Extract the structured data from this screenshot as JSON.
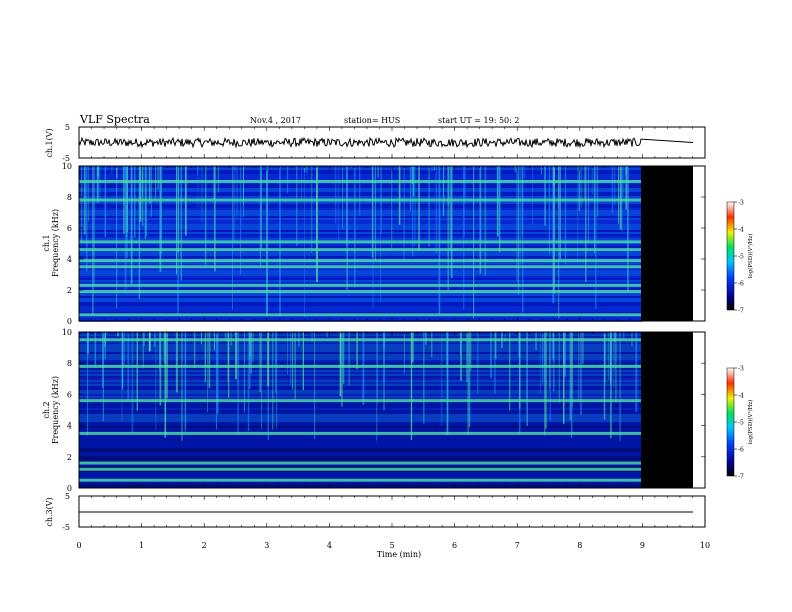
{
  "header": {
    "title": "VLF Spectra",
    "date": "Nov.4 , 2017",
    "station": "station= HUS",
    "start": "start UT = 19: 50: 2"
  },
  "colors": {
    "spectrogram_background_low": "#0016b8",
    "spectrogram_mid": "#1f8ff0",
    "spectrogram_high": "#4fe3a8",
    "no_data": "#000000",
    "waveform": "#000000"
  },
  "chart_data": [
    {
      "type": "line",
      "ylabel": "ch.1(V)",
      "ylim": [
        -5,
        5
      ],
      "yticks": [
        "5",
        "-5"
      ],
      "x_range_min": [
        0,
        10
      ],
      "data_end_min": 10,
      "approx_amplitude_v": 1
    },
    {
      "type": "heatmap",
      "ylabel_channel": "ch.1",
      "ylabel": "Frequency (kHz)",
      "ylim": [
        0,
        10
      ],
      "yticks": [
        "0",
        "2",
        "4",
        "6",
        "8",
        "10"
      ],
      "x_range_min": [
        0,
        10
      ],
      "data_end_min": 9,
      "bright_bands_khz": [
        0.4,
        1.9,
        2.3,
        3.5,
        3.9,
        4.6,
        5.1,
        7.8,
        9.0
      ],
      "colorbar": {
        "label": "log(PSD)(V²/Hz)",
        "range": [
          -7,
          -3
        ],
        "ticks": [
          "-3",
          "-4",
          "-5",
          "-6",
          "-7"
        ]
      }
    },
    {
      "type": "heatmap",
      "ylabel_channel": "ch.2",
      "ylabel": "Frequency (kHz)",
      "ylim": [
        0,
        10
      ],
      "yticks": [
        "0",
        "2",
        "4",
        "6",
        "8",
        "10"
      ],
      "x_range_min": [
        0,
        10
      ],
      "data_end_min": 9,
      "bright_bands_khz": [
        0.5,
        1.2,
        1.6,
        3.5,
        5.6,
        7.8,
        9.5
      ],
      "colorbar": {
        "label": "log(PSD)(V²/Hz)",
        "range": [
          -7,
          -3
        ],
        "ticks": [
          "-3",
          "-4",
          "-5",
          "-6",
          "-7"
        ]
      }
    },
    {
      "type": "line",
      "ylabel": "ch.3(V)",
      "ylim": [
        -5,
        5
      ],
      "yticks": [
        "5",
        "-5"
      ],
      "x_range_min": [
        0,
        10
      ],
      "data_end_min": 10,
      "approx_amplitude_v": 0,
      "xlabel": "Time (min)",
      "xticks": [
        "0",
        "1",
        "2",
        "3",
        "4",
        "5",
        "6",
        "7",
        "8",
        "9",
        "10"
      ]
    }
  ]
}
